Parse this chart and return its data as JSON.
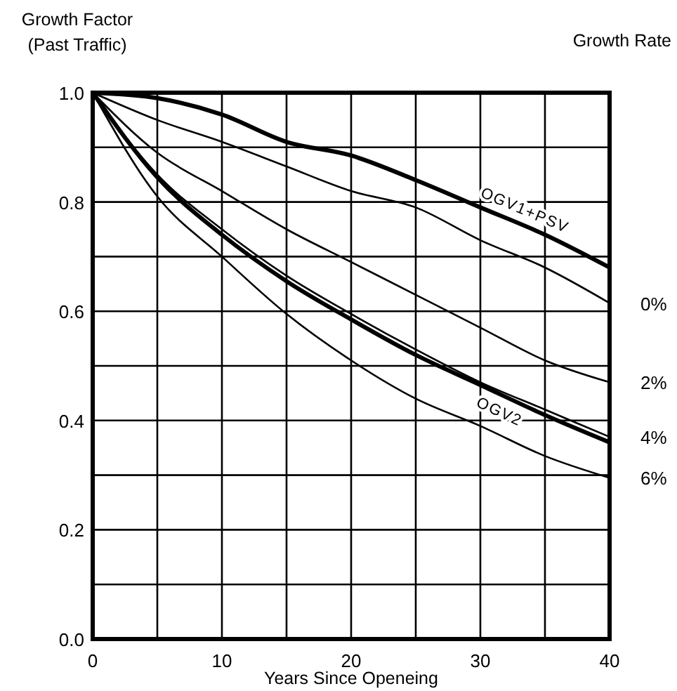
{
  "chart_data": {
    "type": "line",
    "ylabel": "Growth Factor\n(Past Traffic)",
    "xlabel": "Years Since Openeing",
    "legend_title": "Growth Rate",
    "x": [
      0,
      5,
      10,
      15,
      20,
      25,
      30,
      35,
      40
    ],
    "series": [
      {
        "color": "#000000",
        "values": [
          1.0,
          0.99,
          0.96,
          0.91,
          0.885,
          0.84,
          0.79,
          0.74,
          0.68
        ]
      },
      {
        "name": "0%",
        "color": "#000000",
        "values": [
          1.0,
          0.95,
          0.91,
          0.865,
          0.82,
          0.79,
          0.73,
          0.68,
          0.615
        ]
      },
      {
        "name": "2%",
        "color": "#000000",
        "values": [
          1.0,
          0.89,
          0.82,
          0.75,
          0.69,
          0.63,
          0.57,
          0.51,
          0.47
        ]
      },
      {
        "name": "4%",
        "color": "#000000",
        "values": [
          1.0,
          0.85,
          0.75,
          0.665,
          0.595,
          0.53,
          0.47,
          0.42,
          0.37
        ]
      },
      {
        "color": "#000000",
        "values": [
          1.0,
          0.845,
          0.74,
          0.655,
          0.585,
          0.52,
          0.465,
          0.41,
          0.36
        ]
      },
      {
        "name": "6%",
        "color": "#000000",
        "values": [
          1.0,
          0.81,
          0.7,
          0.595,
          0.51,
          0.44,
          0.39,
          0.335,
          0.295
        ]
      }
    ],
    "annotations": [
      {
        "text": "OGV1+PSV",
        "x": 33,
        "y": 0.76
      },
      {
        "text": "OGV2",
        "x": 32,
        "y": 0.443
      }
    ],
    "xlim": [
      0,
      40
    ],
    "xticks": [
      0,
      {
        "value": 5,
        "label": null
      },
      10,
      {
        "value": 15,
        "label": null
      },
      20,
      {
        "value": 25,
        "label": null
      },
      30,
      {
        "value": 35,
        "label": null
      },
      40
    ],
    "ylim": [
      0,
      1.0
    ],
    "yticks": [
      {
        "value": 0,
        "label": "0.0"
      },
      {
        "value": 0.1,
        "label": null
      },
      {
        "value": 0.2,
        "label": "0.2"
      },
      {
        "value": 0.3,
        "label": null
      },
      {
        "value": 0.4,
        "label": "0.4"
      },
      {
        "value": 0.5,
        "label": null
      },
      {
        "value": 0.6,
        "label": "0.6"
      },
      {
        "value": 0.7,
        "label": null
      },
      {
        "value": 0.8,
        "label": "0.8"
      },
      {
        "value": 0.9,
        "label": null
      },
      {
        "value": 1.0,
        "label": "1.0"
      }
    ],
    "grid": true,
    "line_style": "solid",
    "marker": "none"
  }
}
